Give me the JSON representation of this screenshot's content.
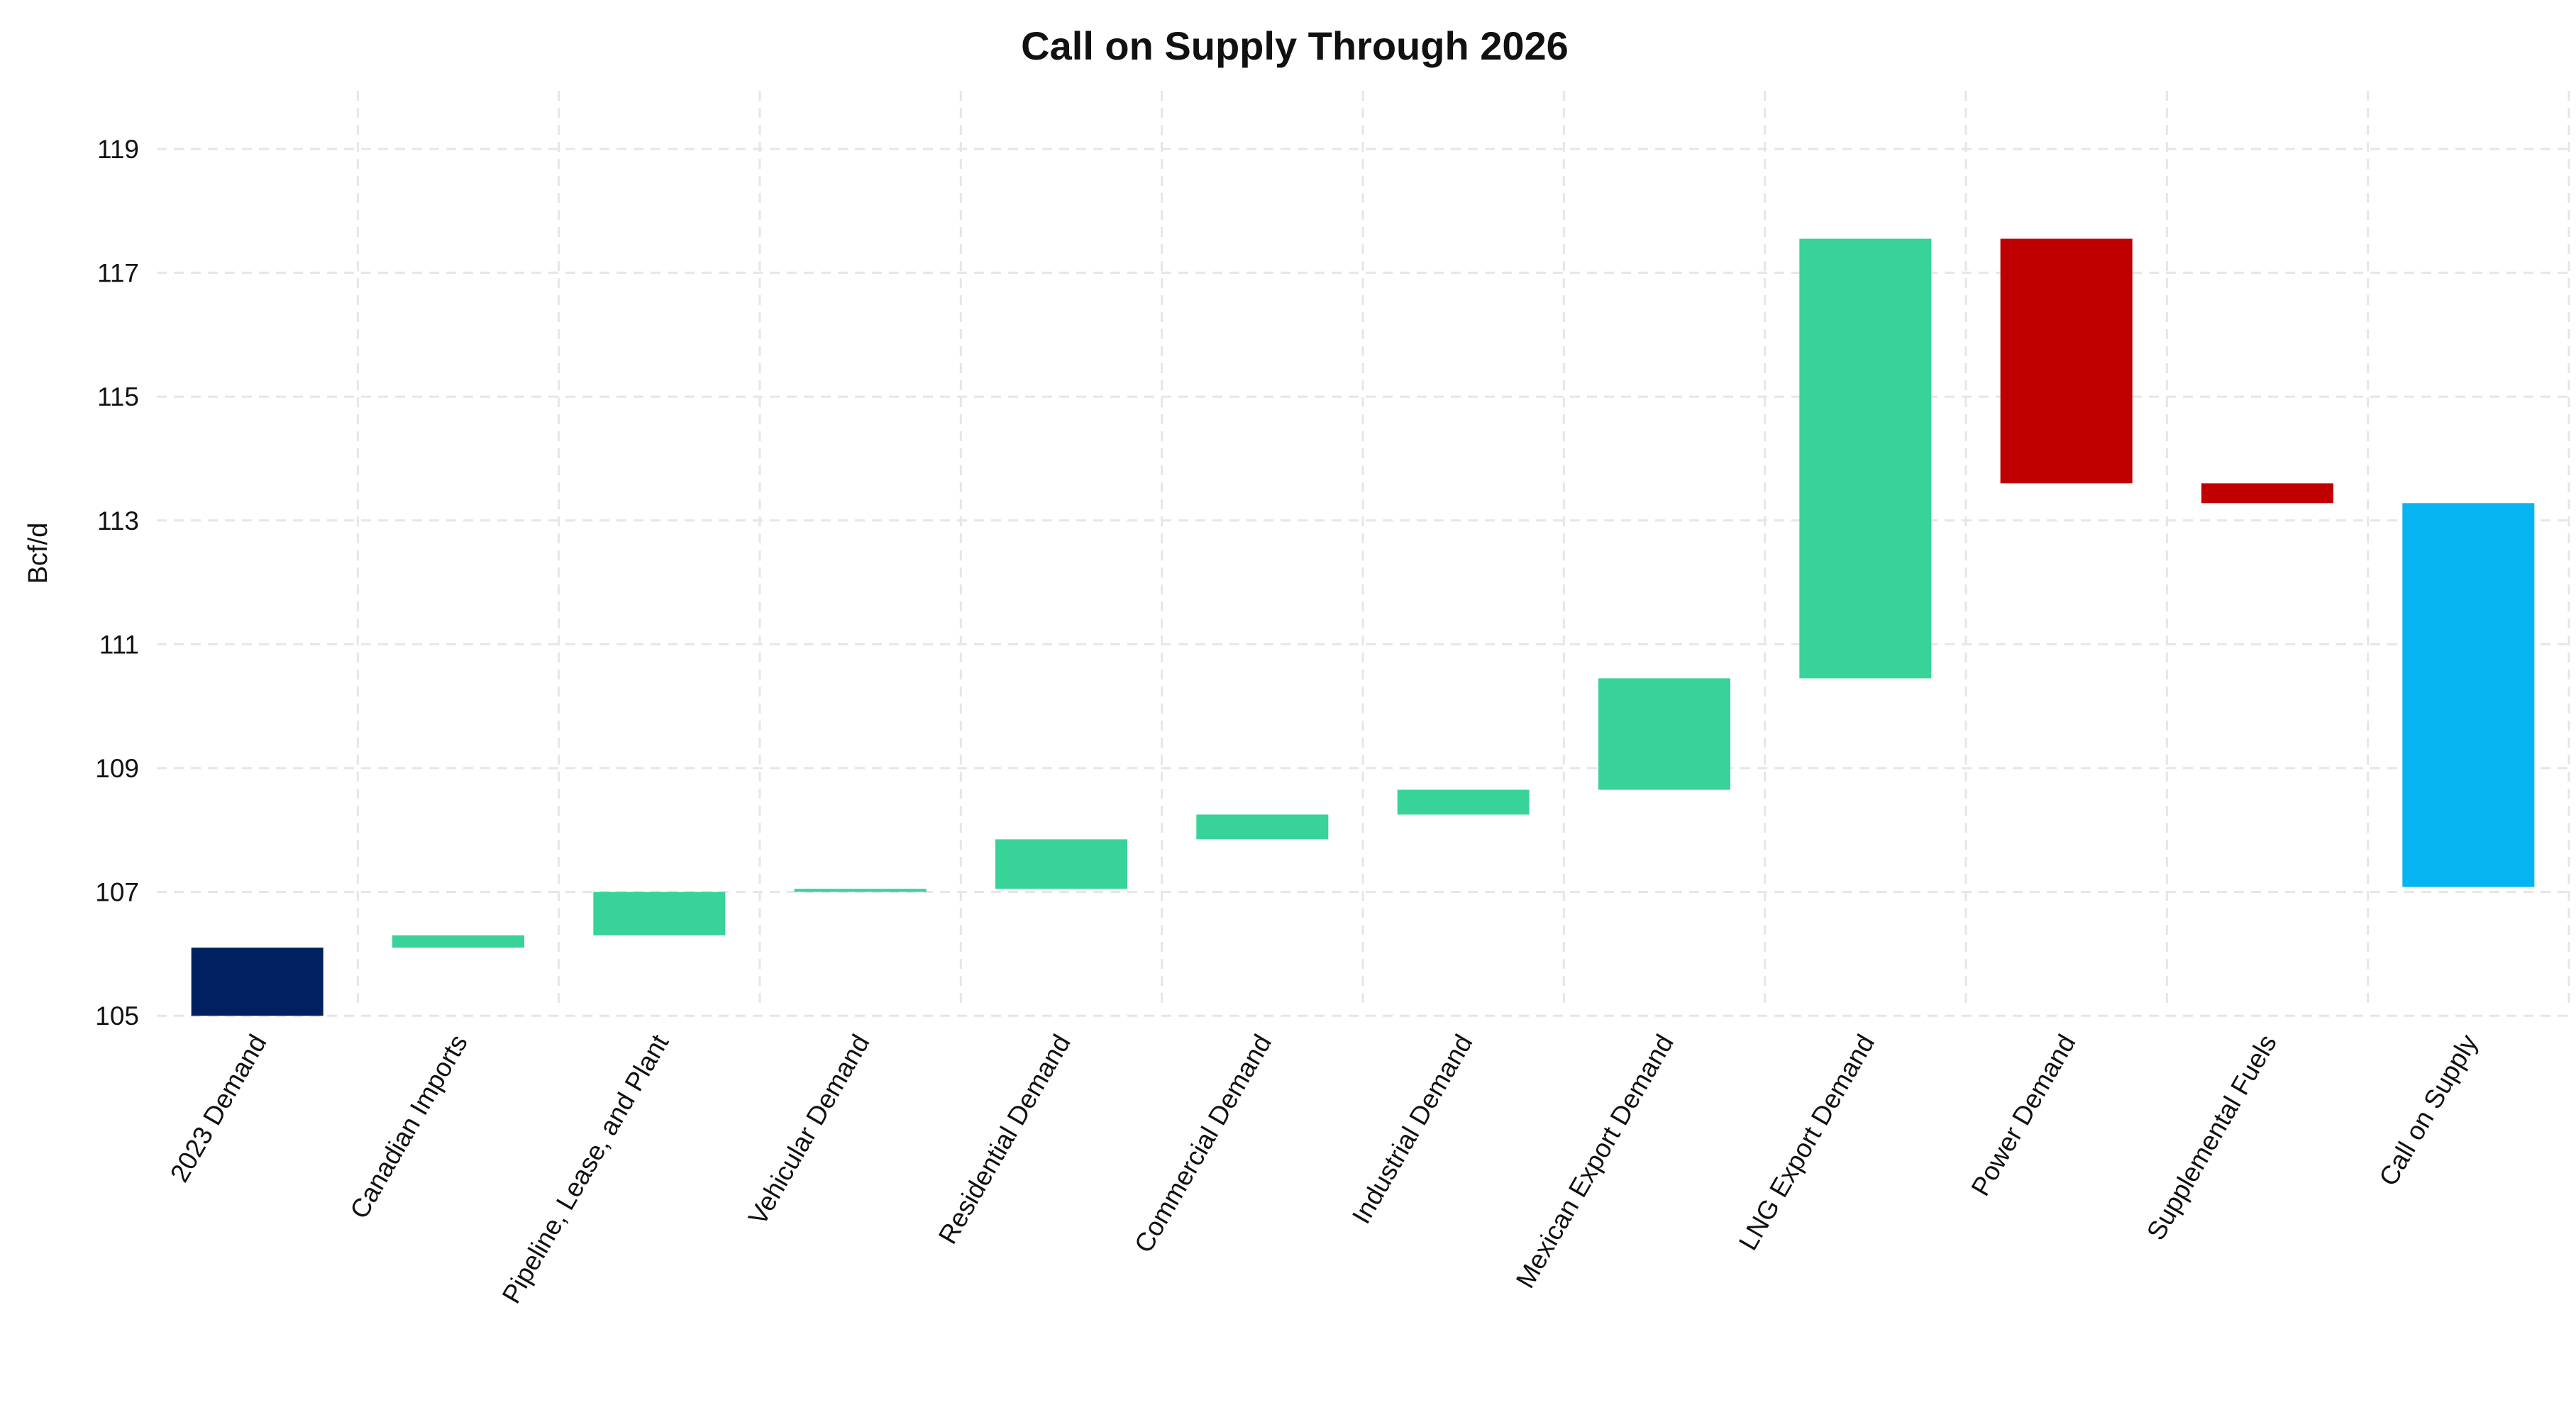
{
  "chart_data": {
    "type": "waterfall",
    "title": "Call on Supply Through 2026",
    "xlabel": "",
    "ylabel": "Bcf/d",
    "ylim": [
      105,
      119.8
    ],
    "yticks": [
      105,
      107,
      109,
      111,
      113,
      115,
      117,
      119
    ],
    "grid": true,
    "colors": {
      "base": "#002060",
      "increase": "#37D399",
      "decrease": "#C00000",
      "total": "#05B4F0"
    },
    "categories": [
      "2023 Demand",
      "Canadian Imports",
      "Pipeline, Lease, and Plant",
      "Vehicular Demand",
      "Residential Demand",
      "Commercial Demand",
      "Industrial Demand",
      "Mexican Export Demand",
      "LNG Export Demand",
      "Power Demand",
      "Supplemental Fuels",
      "Call on Supply"
    ],
    "bars": [
      {
        "start": 105.0,
        "end": 106.1,
        "kind": "base"
      },
      {
        "start": 106.1,
        "end": 106.3,
        "kind": "increase"
      },
      {
        "start": 106.3,
        "end": 107.0,
        "kind": "increase"
      },
      {
        "start": 107.0,
        "end": 107.05,
        "kind": "increase"
      },
      {
        "start": 107.05,
        "end": 107.85,
        "kind": "increase"
      },
      {
        "start": 107.85,
        "end": 108.25,
        "kind": "increase"
      },
      {
        "start": 108.25,
        "end": 108.65,
        "kind": "increase"
      },
      {
        "start": 108.65,
        "end": 110.45,
        "kind": "increase"
      },
      {
        "start": 110.45,
        "end": 117.55,
        "kind": "increase"
      },
      {
        "start": 117.55,
        "end": 113.6,
        "kind": "decrease"
      },
      {
        "start": 113.6,
        "end": 113.28,
        "kind": "decrease"
      },
      {
        "start": 107.08,
        "end": 113.28,
        "kind": "total"
      }
    ]
  }
}
